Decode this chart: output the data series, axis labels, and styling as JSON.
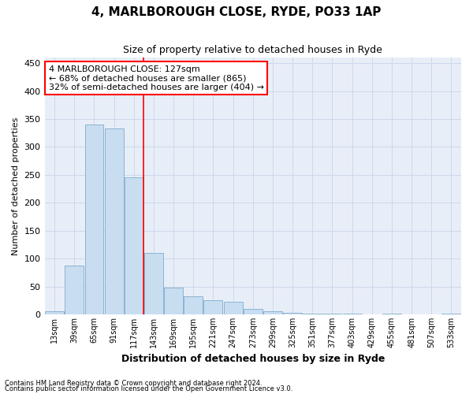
{
  "title1": "4, MARLBOROUGH CLOSE, RYDE, PO33 1AP",
  "title2": "Size of property relative to detached houses in Ryde",
  "xlabel": "Distribution of detached houses by size in Ryde",
  "ylabel": "Number of detached properties",
  "categories": [
    "13sqm",
    "39sqm",
    "65sqm",
    "91sqm",
    "117sqm",
    "143sqm",
    "169sqm",
    "195sqm",
    "221sqm",
    "247sqm",
    "273sqm",
    "299sqm",
    "325sqm",
    "351sqm",
    "377sqm",
    "403sqm",
    "429sqm",
    "455sqm",
    "481sqm",
    "507sqm",
    "533sqm"
  ],
  "values": [
    6,
    87,
    340,
    333,
    245,
    110,
    48,
    32,
    25,
    22,
    10,
    5,
    3,
    2,
    1,
    1,
    0,
    1,
    0,
    0,
    1
  ],
  "bar_color": "#c9ddf0",
  "bar_edge_color": "#8ab4d4",
  "red_line_x": 4.5,
  "annotation_line1": "4 MARLBOROUGH CLOSE: 127sqm",
  "annotation_line2": "← 68% of detached houses are smaller (865)",
  "annotation_line3": "32% of semi-detached houses are larger (404) →",
  "annotation_box_color": "white",
  "annotation_box_edge_color": "red",
  "footer1": "Contains HM Land Registry data © Crown copyright and database right 2024.",
  "footer2": "Contains public sector information licensed under the Open Government Licence v3.0.",
  "ylim": [
    0,
    460
  ],
  "yticks": [
    0,
    50,
    100,
    150,
    200,
    250,
    300,
    350,
    400,
    450
  ],
  "grid_color": "#cdd8ea",
  "plot_bg_color": "#e8eef8",
  "title1_fontsize": 11,
  "title2_fontsize": 9,
  "ylabel_fontsize": 8,
  "xlabel_fontsize": 9,
  "tick_fontsize": 7,
  "footer_fontsize": 6,
  "annotation_fontsize": 8
}
